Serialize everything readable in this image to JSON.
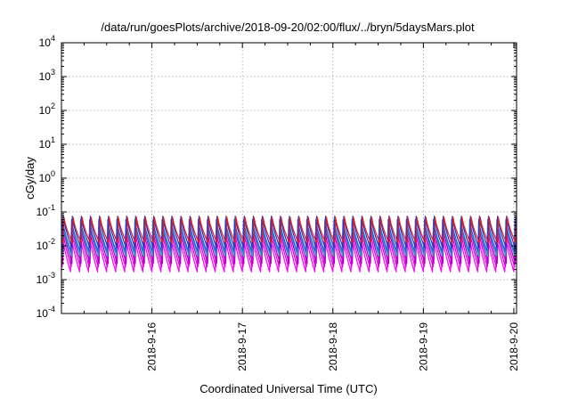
{
  "chart_data": {
    "type": "line",
    "title": "/data/run/goesPlots/archive/2018-09-20/02:00/flux/../bryn/5daysMars.plot",
    "xlabel": "Coordinated Universal Time (UTC)",
    "ylabel": "cGy/day",
    "yscale": "log",
    "ylim": [
      0.0001,
      10000
    ],
    "xlim_days": [
      0,
      5.03
    ],
    "y_ticks": [
      {
        "base": "10",
        "exp": "4",
        "value": 10000
      },
      {
        "base": "10",
        "exp": "3",
        "value": 1000
      },
      {
        "base": "10",
        "exp": "2",
        "value": 100
      },
      {
        "base": "10",
        "exp": "1",
        "value": 10
      },
      {
        "base": "10",
        "exp": "0",
        "value": 1
      },
      {
        "base": "10",
        "exp": "-1",
        "value": 0.1
      },
      {
        "base": "10",
        "exp": "-2",
        "value": 0.01
      },
      {
        "base": "10",
        "exp": "-3",
        "value": 0.001
      },
      {
        "base": "10",
        "exp": "-4",
        "value": 0.0001
      }
    ],
    "x_ticks": [
      {
        "label": "2018-9-16",
        "day": 1
      },
      {
        "label": "2018-9-17",
        "day": 2
      },
      {
        "label": "2018-9-18",
        "day": 3
      },
      {
        "label": "2018-9-19",
        "day": 4
      },
      {
        "label": "2018-9-20",
        "day": 5
      }
    ],
    "grid": true,
    "cycle_period_days": 0.1,
    "series": [
      {
        "color": "#ff00ff",
        "peak": 0.022,
        "trough": 0.0017,
        "phase": 0.0
      },
      {
        "color": "#dd00dd",
        "peak": 0.028,
        "trough": 0.0024,
        "phase": 0.008
      },
      {
        "color": "#b000c8",
        "peak": 0.034,
        "trough": 0.003,
        "phase": 0.016
      },
      {
        "color": "#20a0c0",
        "peak": 0.045,
        "trough": 0.005,
        "phase": 0.01
      },
      {
        "color": "#2060e0",
        "peak": 0.06,
        "trough": 0.007,
        "phase": 0.004
      },
      {
        "color": "#3030c0",
        "peak": 0.075,
        "trough": 0.009,
        "phase": 0.012
      },
      {
        "color": "#e02020",
        "peak": 0.07,
        "trough": 0.012,
        "phase": 0.02
      }
    ]
  }
}
